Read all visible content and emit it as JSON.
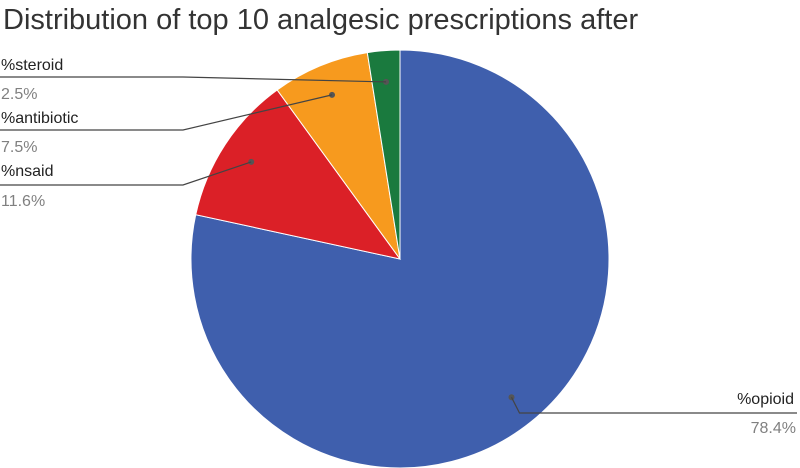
{
  "chart_data": {
    "type": "pie",
    "title": "Distribution of top 10 analgesic prescriptions after",
    "slices": [
      {
        "label": "%opioid",
        "value": 78.4,
        "display": "78.4%",
        "color": "#3f5fad"
      },
      {
        "label": "%nsaid",
        "value": 11.6,
        "display": "11.6%",
        "color": "#db2027"
      },
      {
        "label": "%antibiotic",
        "value": 7.5,
        "display": "7.5%",
        "color": "#f79a1e"
      },
      {
        "label": "%steroid",
        "value": 2.5,
        "display": "2.5%",
        "color": "#1a7a3e"
      }
    ],
    "start": "top",
    "direction": "clockwise",
    "legend": "none"
  }
}
